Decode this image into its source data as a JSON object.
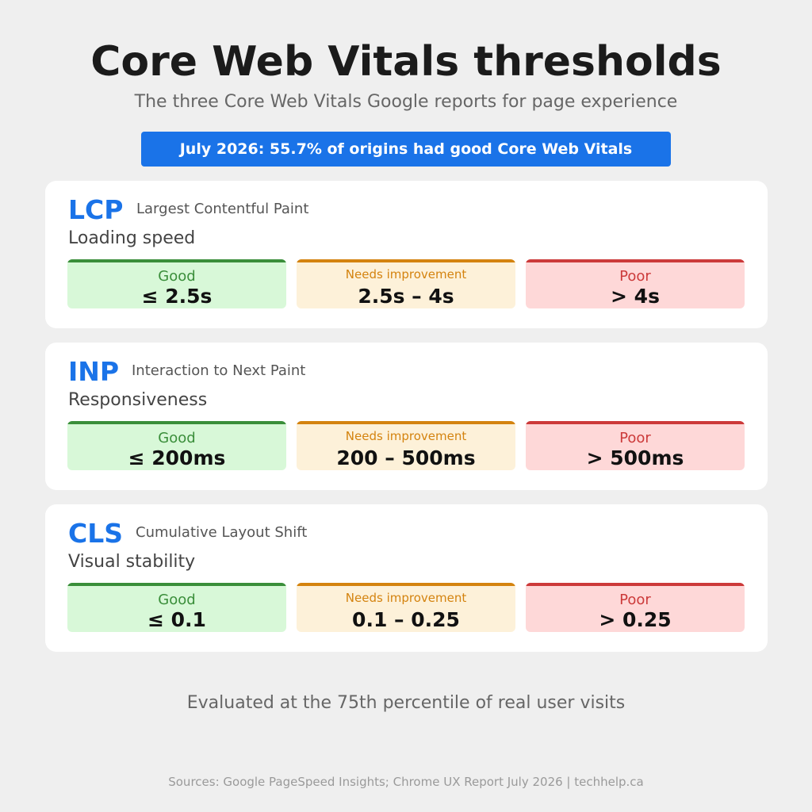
{
  "header": {
    "title": "Core Web Vitals thresholds",
    "subtitle": "The three Core Web Vitals Google reports for page experience"
  },
  "banner": {
    "text": "July 2026: 55.7% of origins had good Core Web Vitals"
  },
  "metrics": [
    {
      "abbr": "LCP",
      "full_name": "Largest Contentful Paint",
      "aspect": "Loading speed",
      "good_label": "Good",
      "good_value": "≤ 2.5s",
      "ni_label": "Needs improvement",
      "ni_value": "2.5s – 4s",
      "poor_label": "Poor",
      "poor_value": "> 4s"
    },
    {
      "abbr": "INP",
      "full_name": "Interaction to Next Paint",
      "aspect": "Responsiveness",
      "good_label": "Good",
      "good_value": "≤ 200ms",
      "ni_label": "Needs improvement",
      "ni_value": "200 – 500ms",
      "poor_label": "Poor",
      "poor_value": "> 500ms"
    },
    {
      "abbr": "CLS",
      "full_name": "Cumulative Layout Shift",
      "aspect": "Visual stability",
      "good_label": "Good",
      "good_value": "≤ 0.1",
      "ni_label": "Needs improvement",
      "ni_value": "0.1 – 0.25",
      "poor_label": "Poor",
      "poor_value": "> 0.25"
    }
  ],
  "footnote": "Evaluated at the 75th percentile of real user visits",
  "sources": "Sources: Google PageSpeed Insights; Chrome UX Report July 2026  |  techhelp.ca",
  "colors": {
    "background": "#efefef",
    "accent_blue": "#1a73e8",
    "good": "#3a8e3a",
    "good_bg": "#d8f8d8",
    "needs_improvement": "#d4830f",
    "needs_improvement_bg": "#fdf1d9",
    "poor": "#cc3a3a",
    "poor_bg": "#fed8d8"
  }
}
